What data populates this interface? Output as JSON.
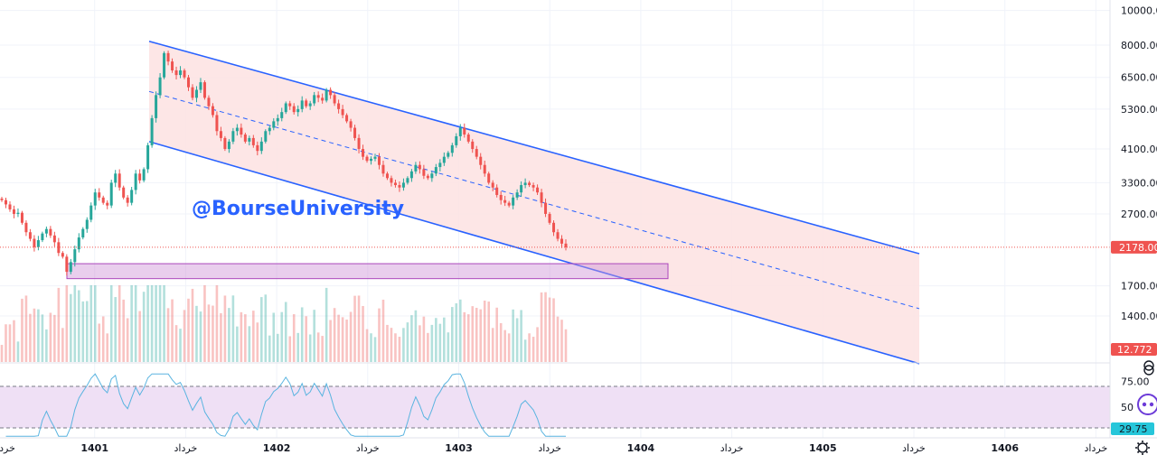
{
  "watermark": "@BourseUniversity",
  "chart_data": {
    "type": "candlestick",
    "price_axis": {
      "scale": "log",
      "ticks": [
        {
          "value": 10000,
          "label": "10000.00"
        },
        {
          "value": 8000,
          "label": "8000.00"
        },
        {
          "value": 6500,
          "label": "6500.00"
        },
        {
          "value": 5300,
          "label": "5300.00"
        },
        {
          "value": 4100,
          "label": "4100.00"
        },
        {
          "value": 3300,
          "label": "3300.00"
        },
        {
          "value": 2700,
          "label": "2700.00"
        },
        {
          "value": 1700,
          "label": "1700.00"
        },
        {
          "value": 1400,
          "label": "1400.00"
        }
      ],
      "last_price_label": "2178.00",
      "last_price": 2178,
      "volume_label": "12.772",
      "color_up": "#26a69a",
      "color_down": "#ef5350"
    },
    "time_axis": {
      "labels": [
        {
          "text": "خرداد",
          "bold": false
        },
        {
          "text": "1401",
          "bold": true
        },
        {
          "text": "خرداد",
          "bold": false
        },
        {
          "text": "1402",
          "bold": true
        },
        {
          "text": "خرداد",
          "bold": false
        },
        {
          "text": "1403",
          "bold": true
        },
        {
          "text": "خرداد",
          "bold": false
        },
        {
          "text": "1404",
          "bold": true
        },
        {
          "text": "خرداد",
          "bold": false
        },
        {
          "text": "1405",
          "bold": true
        },
        {
          "text": "خرداد",
          "bold": false
        },
        {
          "text": "1406",
          "bold": true
        },
        {
          "text": "خرداد",
          "bold": false
        }
      ]
    },
    "channel": {
      "upper_start": 8200,
      "upper_end": 2090,
      "lower_start": 4300,
      "lower_end": 1030,
      "color": "#2962ff",
      "fill": "#fde2e2"
    },
    "support_zone": {
      "low": 1780,
      "high": 1960,
      "color": "#ce93d8"
    },
    "rsi": {
      "ticks": [
        {
          "value": 75,
          "label": "75.00"
        },
        {
          "value": 50,
          "label": "50"
        }
      ],
      "upper_band": 70,
      "lower_band": 30,
      "current_label": "29.75",
      "current": 29.75,
      "line_color": "#5ab4e0",
      "band_fill": "#efe0f5"
    },
    "closes": [
      2950,
      2870,
      2780,
      2700,
      2720,
      2550,
      2400,
      2300,
      2180,
      2280,
      2380,
      2450,
      2350,
      2250,
      2100,
      2050,
      1860,
      1980,
      2150,
      2320,
      2450,
      2600,
      2850,
      3100,
      3000,
      2900,
      2850,
      3300,
      3500,
      3200,
      3000,
      2900,
      3150,
      3500,
      3350,
      3600,
      4200,
      5000,
      5800,
      6500,
      7600,
      7200,
      6800,
      6600,
      6800,
      6500,
      6100,
      5700,
      6000,
      6300,
      5700,
      5400,
      5100,
      4600,
      4400,
      4100,
      4300,
      4600,
      4700,
      4500,
      4300,
      4400,
      4200,
      4050,
      4300,
      4600,
      4700,
      4900,
      5000,
      5200,
      5500,
      5400,
      5200,
      5300,
      5600,
      5400,
      5500,
      5800,
      5700,
      5600,
      6000,
      5800,
      5500,
      5300,
      5100,
      4900,
      4700,
      4400,
      4100,
      3900,
      3800,
      3850,
      3900,
      3700,
      3500,
      3400,
      3300,
      3250,
      3200,
      3300,
      3400,
      3550,
      3700,
      3600,
      3450,
      3400,
      3500,
      3650,
      3750,
      3900,
      4000,
      4200,
      4450,
      4700,
      4500,
      4300,
      4100,
      3900,
      3700,
      3500,
      3300,
      3200,
      3050,
      2950,
      2900,
      2850,
      3000,
      3100,
      3250,
      3300,
      3250,
      3200,
      3100,
      2900,
      2700,
      2550,
      2400,
      2300,
      2230,
      2178
    ]
  }
}
